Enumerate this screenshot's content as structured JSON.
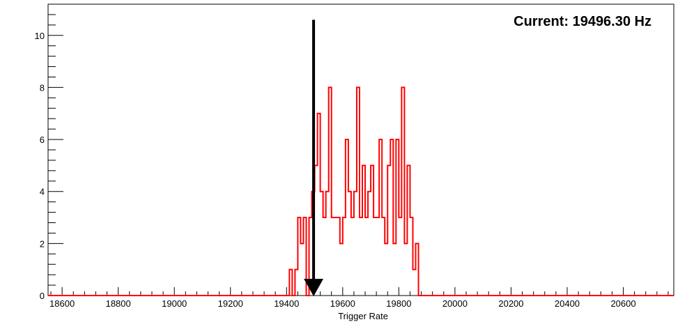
{
  "chart_data": {
    "type": "histogram",
    "title": "",
    "xlabel": "Trigger Rate",
    "ylabel": "",
    "xlim": [
      18550,
      20780
    ],
    "ylim": [
      0,
      11.2
    ],
    "grid": false,
    "legend": "none",
    "xticks": [
      "18600",
      "18800",
      "19000",
      "19200",
      "19400",
      "19600",
      "19800",
      "20000",
      "20200",
      "20400",
      "20600"
    ],
    "yticks": [
      "0",
      "2",
      "4",
      "6",
      "8",
      "10"
    ],
    "annotation": {
      "label": "Current: 19496.30 Hz",
      "marker_x": 19496.3,
      "marker_top_y": 10.6
    },
    "series": [
      {
        "color": "#ff0000",
        "bin_edges": [
          19410,
          19420,
          19430,
          19440,
          19450,
          19460,
          19470,
          19480,
          19490,
          19500,
          19510,
          19520,
          19530,
          19540,
          19550,
          19560,
          19570,
          19580,
          19590,
          19600,
          19610,
          19620,
          19630,
          19640,
          19650,
          19660,
          19670,
          19680,
          19690,
          19700,
          19710,
          19720,
          19730,
          19740,
          19750,
          19760,
          19770,
          19780,
          19790,
          19800,
          19810,
          19820,
          19830,
          19840,
          19850,
          19860,
          19870,
          19880
        ],
        "values": [
          1,
          0,
          1,
          3,
          2,
          3,
          0,
          3,
          4,
          5,
          7,
          4,
          3,
          4,
          8,
          3,
          3,
          3,
          2,
          3,
          6,
          4,
          3,
          4,
          8,
          3,
          5,
          3,
          4,
          5,
          3,
          3,
          6,
          3,
          2,
          5,
          6,
          2,
          6,
          3,
          8,
          2,
          5,
          3,
          1,
          2,
          0
        ]
      }
    ],
    "colors": {
      "series": "#ff0000",
      "marker": "#000000",
      "frame": "#000000"
    }
  }
}
